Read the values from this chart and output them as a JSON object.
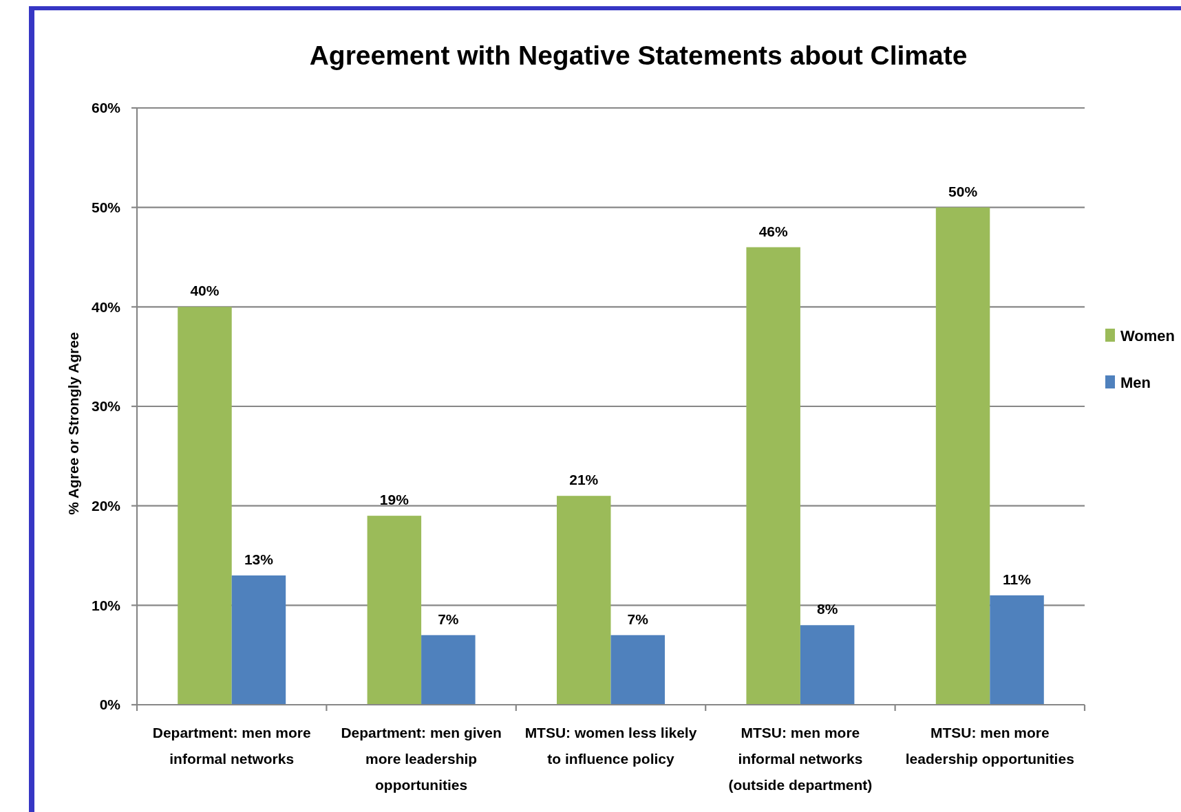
{
  "chart_data": {
    "type": "bar",
    "title": "Agreement with Negative Statements about Climate",
    "ylabel": "% Agree or Strongly Agree",
    "categories": [
      "Department: men more informal networks",
      "Department: men given more leadership opportunities",
      "MTSU: women less likely to influence policy",
      "MTSU: men more informal networks (outside department)",
      "MTSU: men more leadership opportunities"
    ],
    "series": [
      {
        "name": "Women",
        "color": "#9bbb59",
        "values": [
          40,
          19,
          21,
          46,
          50
        ],
        "value_labels": [
          "40%",
          "19%",
          "21%",
          "46%",
          "50%"
        ]
      },
      {
        "name": "Men",
        "color": "#4f81bd",
        "values": [
          13,
          7,
          7,
          8,
          11
        ],
        "value_labels": [
          "13%",
          "7%",
          "7%",
          "8%",
          "11%"
        ]
      }
    ],
    "ylim": [
      0,
      60
    ],
    "yticks": [
      {
        "value": 0,
        "label": "0%"
      },
      {
        "value": 10,
        "label": "10%"
      },
      {
        "value": 20,
        "label": "20%"
      },
      {
        "value": 30,
        "label": "30%"
      },
      {
        "value": 40,
        "label": "40%"
      },
      {
        "value": 50,
        "label": "50%"
      },
      {
        "value": 60,
        "label": "60%"
      }
    ],
    "grid": "y",
    "legend": "right"
  }
}
